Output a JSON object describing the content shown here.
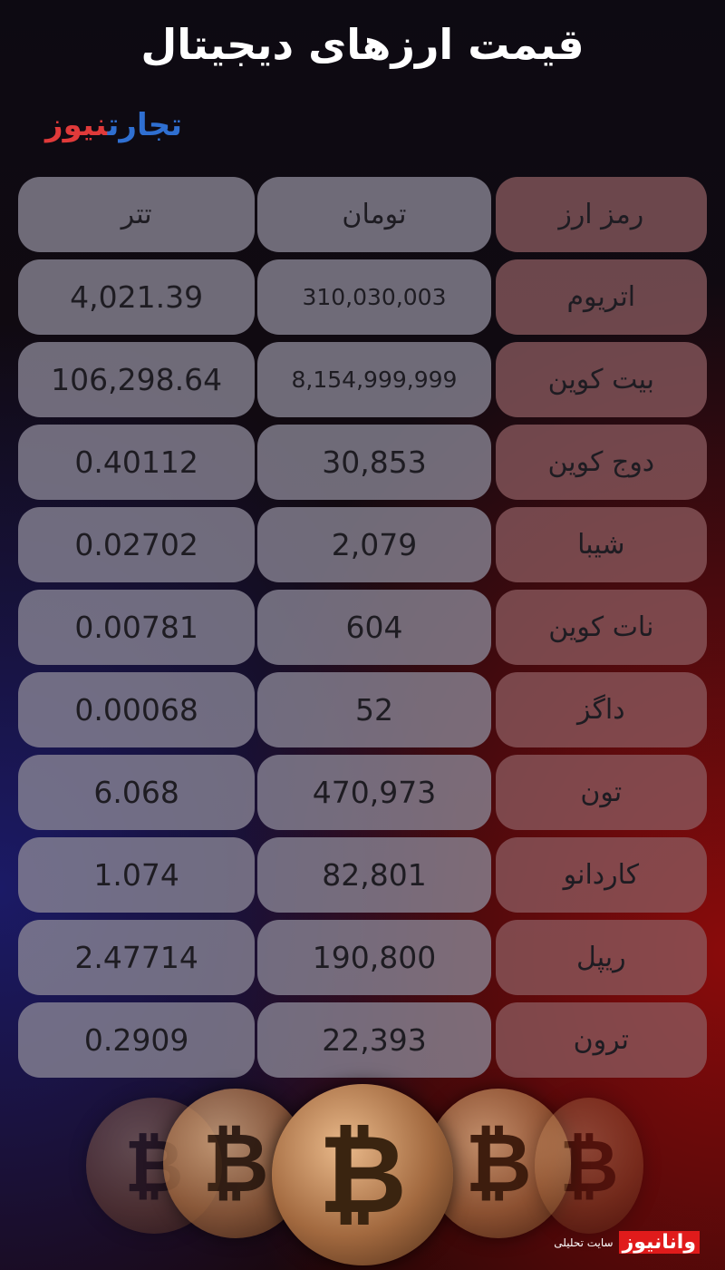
{
  "title": "قیمت ارزهای دیجیتال",
  "logo": {
    "part1": "تجارت",
    "part2": "نیوز"
  },
  "table": {
    "headers": [
      "تتر",
      "تومان",
      "رمز ارز"
    ],
    "rows": [
      {
        "usdt": "4,021.39",
        "toman": "310,030,003",
        "name": "اتریوم"
      },
      {
        "usdt": "106,298.64",
        "toman": "8,154,999,999",
        "name": "بیت کوین"
      },
      {
        "usdt": "0.40112",
        "toman": "30,853",
        "name": "دوج کوین"
      },
      {
        "usdt": "0.02702",
        "toman": "2,079",
        "name": "شیبا"
      },
      {
        "usdt": "0.00781",
        "toman": "604",
        "name": "نات کوین"
      },
      {
        "usdt": "0.00068",
        "toman": "52",
        "name": "داگز"
      },
      {
        "usdt": "6.068",
        "toman": "470,973",
        "name": "تون"
      },
      {
        "usdt": "1.074",
        "toman": "82,801",
        "name": "کاردانو"
      },
      {
        "usdt": "2.47714",
        "toman": "190,800",
        "name": "ریپل"
      },
      {
        "usdt": "0.2909",
        "toman": "22,393",
        "name": "ترون"
      }
    ]
  },
  "coin_symbol": "₿",
  "watermark": {
    "logo": "وانانیوز",
    "tagline": "سایت تحلیلی"
  },
  "colors": {
    "logo_blue": "#2f6fd1",
    "logo_red": "#e03a3a",
    "brand_red": "#e01b1b"
  }
}
